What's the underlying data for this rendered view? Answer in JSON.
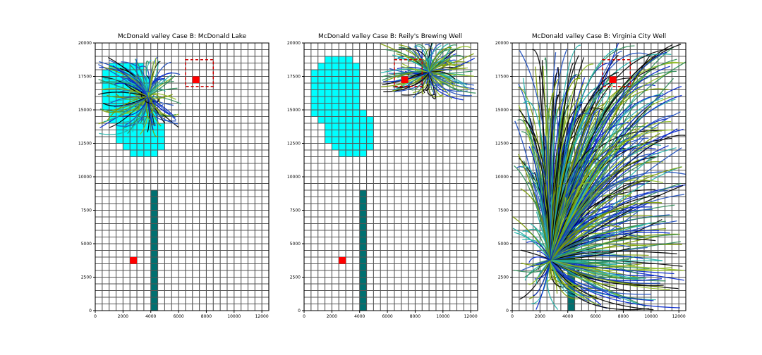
{
  "figure": {
    "background": "#ffffff"
  },
  "style": {
    "grid_color": "#555555",
    "lake_color": "#00ffff",
    "river_color": "#007070",
    "well_color": "#ff0000",
    "box_color": "#cc0000",
    "path_colors": [
      "#000000",
      "#0022cc",
      "#7a9a00",
      "#2e8b57",
      "#20b2aa",
      "#1f4fbf",
      "#8fbc1f"
    ]
  },
  "chart_data": [
    {
      "type": "other",
      "title": "McDonald valley Case B: McDonald Lake",
      "xlim": [
        0,
        12500
      ],
      "ylim": [
        0,
        20000
      ],
      "xticks": [
        0,
        2000,
        4000,
        6000,
        8000,
        10000,
        12000
      ],
      "yticks": [
        0,
        2500,
        5000,
        7500,
        10000,
        12500,
        15000,
        17500,
        20000
      ],
      "grid_cell": [
        500,
        500
      ],
      "lake_rows": [
        {
          "y": [
            18000,
            18500
          ],
          "x": [
            1000,
            3500
          ]
        },
        {
          "y": [
            17500,
            18000
          ],
          "x": [
            500,
            3500
          ]
        },
        {
          "y": [
            15000,
            17500
          ],
          "x": [
            500,
            4000
          ]
        },
        {
          "y": [
            14000,
            15000
          ],
          "x": [
            1000,
            4500
          ]
        },
        {
          "y": [
            12500,
            14000
          ],
          "x": [
            1500,
            5000
          ]
        },
        {
          "y": [
            12000,
            12500
          ],
          "x": [
            2000,
            5000
          ]
        },
        {
          "y": [
            11500,
            12000
          ],
          "x": [
            2500,
            4500
          ]
        }
      ],
      "river": {
        "x": [
          4000,
          4500
        ],
        "y": [
          0,
          9000
        ]
      },
      "wells": [
        {
          "x": 2750,
          "y": 3750
        },
        {
          "x": 7250,
          "y": 17250
        }
      ],
      "box": {
        "x": [
          6500,
          8500
        ],
        "y": [
          16750,
          18750
        ]
      },
      "pathline_region": {
        "x": [
          200,
          6200
        ],
        "y": [
          13000,
          19000
        ],
        "origin": [
          3800,
          16000
        ]
      }
    },
    {
      "type": "other",
      "title": "McDonald valley Case B: Reily's Brewing Well",
      "xlim": [
        0,
        12500
      ],
      "ylim": [
        0,
        20000
      ],
      "xticks": [
        0,
        2000,
        4000,
        6000,
        8000,
        10000,
        12000
      ],
      "yticks": [
        0,
        2500,
        5000,
        7500,
        10000,
        12500,
        15000,
        17500,
        20000
      ],
      "grid_cell": [
        500,
        500
      ],
      "lake_rows": [
        {
          "y": [
            18500,
            19000
          ],
          "x": [
            1500,
            3500
          ]
        },
        {
          "y": [
            18000,
            18500
          ],
          "x": [
            1000,
            4000
          ]
        },
        {
          "y": [
            15000,
            18000
          ],
          "x": [
            500,
            4000
          ]
        },
        {
          "y": [
            14500,
            15000
          ],
          "x": [
            500,
            4500
          ]
        },
        {
          "y": [
            14000,
            14500
          ],
          "x": [
            1000,
            5000
          ]
        },
        {
          "y": [
            12500,
            14000
          ],
          "x": [
            1500,
            5000
          ]
        },
        {
          "y": [
            12000,
            12500
          ],
          "x": [
            2000,
            5000
          ]
        },
        {
          "y": [
            11500,
            12000
          ],
          "x": [
            2500,
            4500
          ]
        }
      ],
      "river": {
        "x": [
          4000,
          4500
        ],
        "y": [
          0,
          9000
        ]
      },
      "wells": [
        {
          "x": 2750,
          "y": 3750
        },
        {
          "x": 7250,
          "y": 17250
        }
      ],
      "box": {
        "x": [
          6500,
          8500
        ],
        "y": [
          16750,
          18750
        ]
      },
      "pathline_region": {
        "x": [
          5500,
          12500
        ],
        "y": [
          15700,
          20000
        ],
        "origin": [
          9000,
          17800
        ]
      }
    },
    {
      "type": "other",
      "title": "McDonald valley Case B: Virginia City Well",
      "xlim": [
        0,
        12500
      ],
      "ylim": [
        0,
        20000
      ],
      "xticks": [
        0,
        2000,
        4000,
        6000,
        8000,
        10000,
        12000
      ],
      "yticks": [
        0,
        2500,
        5000,
        7500,
        10000,
        12500,
        15000,
        17500,
        20000
      ],
      "grid_cell": [
        500,
        500
      ],
      "lake_rows": [],
      "river": {
        "x": [
          4000,
          4500
        ],
        "y": [
          0,
          9000
        ]
      },
      "wells": [
        {
          "x": 7250,
          "y": 17250
        }
      ],
      "box": {
        "x": [
          6500,
          8500
        ],
        "y": [
          16750,
          18750
        ]
      },
      "pathline_region": {
        "x": [
          0,
          12500
        ],
        "y": [
          0,
          20000
        ],
        "origin": [
          2750,
          3750
        ]
      }
    }
  ]
}
